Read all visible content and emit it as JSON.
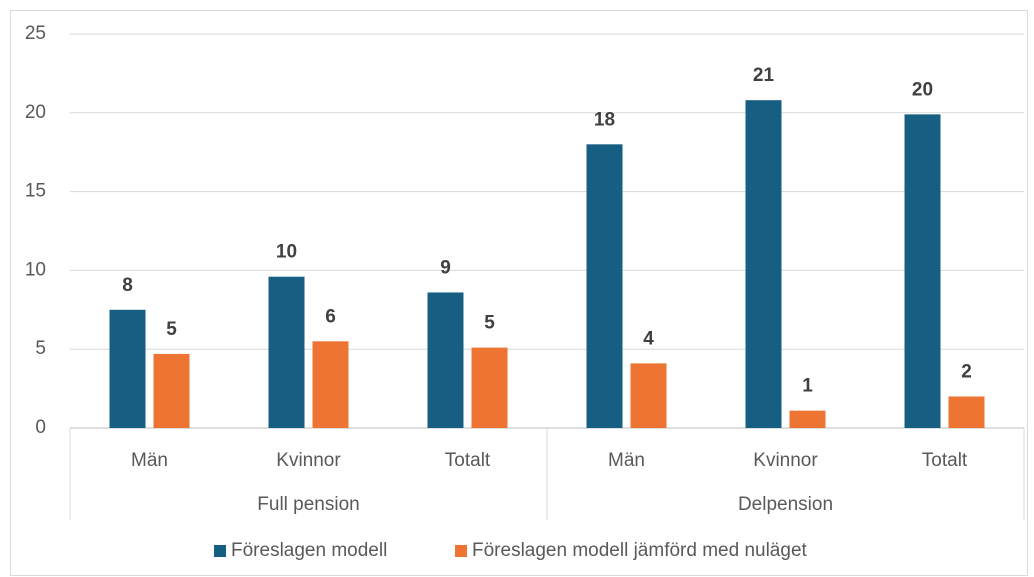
{
  "chart_data": {
    "type": "bar",
    "groups": [
      {
        "label": "Full pension",
        "categories": [
          "Män",
          "Kvinnor",
          "Totalt"
        ]
      },
      {
        "label": "Delpension",
        "categories": [
          "Män",
          "Kvinnor",
          "Totalt"
        ]
      }
    ],
    "series": [
      {
        "name": "Föreslagen modell",
        "color": "#175e83",
        "values": [
          7.5,
          9.6,
          8.6,
          18.0,
          20.8,
          19.9
        ],
        "value_labels": [
          "8",
          "10",
          "9",
          "18",
          "21",
          "20"
        ]
      },
      {
        "name": "Föreslagen modell jämförd med nuläget",
        "color": "#ed7433",
        "values": [
          4.7,
          5.5,
          5.1,
          4.1,
          1.1,
          2.0
        ],
        "value_labels": [
          "5",
          "6",
          "5",
          "4",
          "1",
          "2"
        ]
      }
    ],
    "ylim": [
      0,
      25
    ],
    "yticks": [
      0,
      5,
      10,
      15,
      20,
      25
    ],
    "grid": true,
    "legend": "bottom"
  }
}
